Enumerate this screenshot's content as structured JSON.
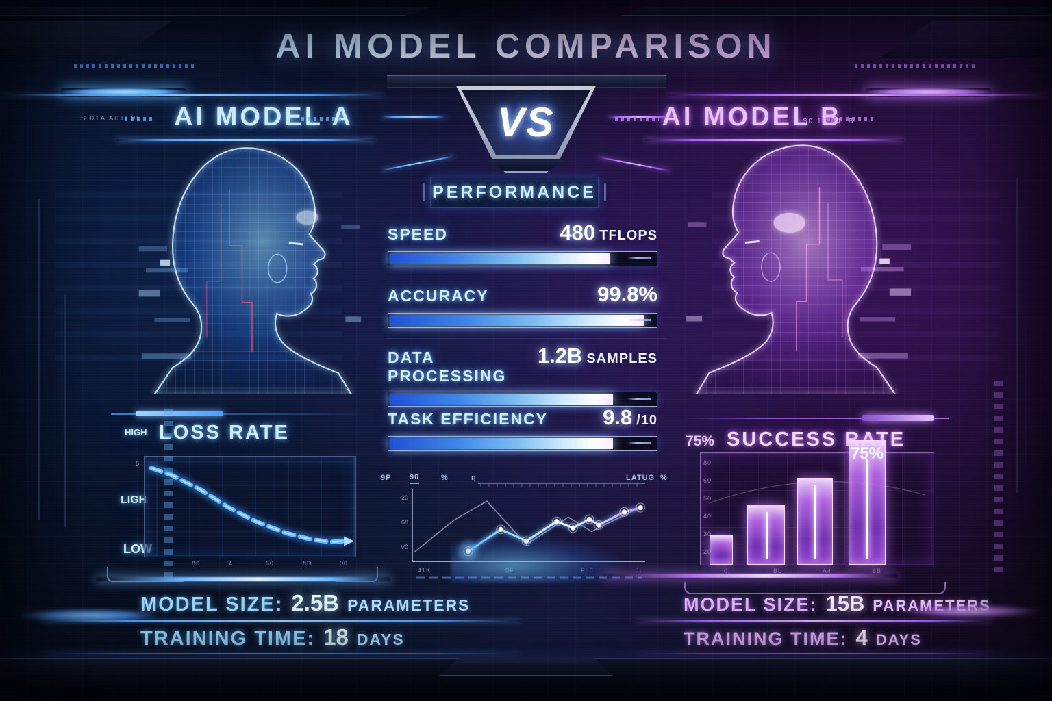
{
  "title": "AI MODEL COMPARISON",
  "vs_label": "VS",
  "header": {
    "model_a": "AI MODEL A",
    "model_b": "AI MODEL B",
    "tag_a": "S 01A  A01E0E",
    "tag_b": "S0 1B 04 .B"
  },
  "performance_header": "PERFORMANCE",
  "model_a_stats": {
    "model_size_label": "MODEL SIZE:",
    "model_size_value": "2.5B",
    "model_size_unit": "PARAMETERS",
    "training_label": "TRAINING TIME:",
    "training_value": "18",
    "training_unit": "DAYS"
  },
  "model_b_stats": {
    "model_size_label": "MODEL SIZE:",
    "model_size_value": "15B",
    "model_size_unit": "PARAMETERS",
    "training_label": "TRAINING TIME:",
    "training_value": "4",
    "training_unit": "DAYS"
  },
  "chart_data": [
    {
      "type": "bar",
      "title": "PERFORMANCE",
      "subtype": "progress-bars",
      "items": [
        {
          "label": "SPEED",
          "value": "480",
          "unit": "TFLOPS",
          "percent": 83
        },
        {
          "label": "ACCURACY",
          "value": "99.8%",
          "unit": "",
          "percent": 96
        },
        {
          "label": "DATA PROCESSING",
          "value": "1.2B",
          "unit": "SAMPLES",
          "percent": 84
        },
        {
          "label": "TASK EFFICIENCY",
          "value": "9.8",
          "unit": "/10",
          "percent": 84
        }
      ]
    },
    {
      "type": "line",
      "title": "LOSS RATE",
      "trend": "decreasing dashed curve with arrow",
      "y_axis_labels": [
        "HIGH",
        "LIGH",
        "LOW"
      ],
      "corner_tick": "8",
      "x_ticks": [
        "80",
        "4",
        "60",
        "8D",
        "00"
      ],
      "series": [
        {
          "name": "loss",
          "points": [
            [
              2,
              8
            ],
            [
              12,
              16
            ],
            [
              26,
              32
            ],
            [
              40,
              52
            ],
            [
              54,
              68
            ],
            [
              68,
              80
            ],
            [
              80,
              87
            ],
            [
              90,
              90
            ],
            [
              96,
              89
            ]
          ]
        }
      ],
      "grid": true
    },
    {
      "type": "line",
      "title": "",
      "top_symbols": [
        "9P",
        "90",
        "%",
        "η"
      ],
      "right_symbols": [
        "LATUG",
        "%"
      ],
      "y_ticks": [
        "20",
        "68",
        "V0"
      ],
      "x_ticks": [
        "41K",
        "0F",
        "FL6",
        "JL"
      ],
      "series": [
        {
          "name": "bright",
          "points": [
            [
              24,
              86
            ],
            [
              38,
              56
            ],
            [
              49,
              72
            ],
            [
              62,
              45
            ],
            [
              69,
              54
            ],
            [
              76,
              42
            ],
            [
              80,
              50
            ],
            [
              91,
              32
            ],
            [
              98,
              26
            ]
          ]
        },
        {
          "name": "faint",
          "points": [
            [
              1,
              87
            ],
            [
              18,
              43
            ],
            [
              32,
              17
            ],
            [
              49,
              77
            ],
            [
              67,
              39
            ],
            [
              77,
              59
            ],
            [
              88,
              41
            ],
            [
              99,
              24
            ]
          ]
        }
      ],
      "grid": false
    },
    {
      "type": "bar",
      "title": "SUCCESS RATE",
      "side_label": "75%",
      "annotation": "75%",
      "categories": [
        "1",
        "2",
        "3",
        "4"
      ],
      "values": [
        17,
        36,
        52,
        75
      ],
      "ylim": [
        0,
        80
      ],
      "y_ticks": [
        "80",
        "60",
        "50",
        "40",
        "30",
        "20"
      ],
      "x_ticks": [
        "0I",
        "BL",
        "A4",
        "BB"
      ]
    }
  ],
  "colors": {
    "accent_blue": "#4f9dff",
    "accent_cyan": "#9fdcff",
    "accent_purple": "#b06fe8",
    "accent_pink": "#e3b5ff",
    "bar_fill_start": "#1e50d2",
    "bar_fill_end": "#ffffff"
  }
}
